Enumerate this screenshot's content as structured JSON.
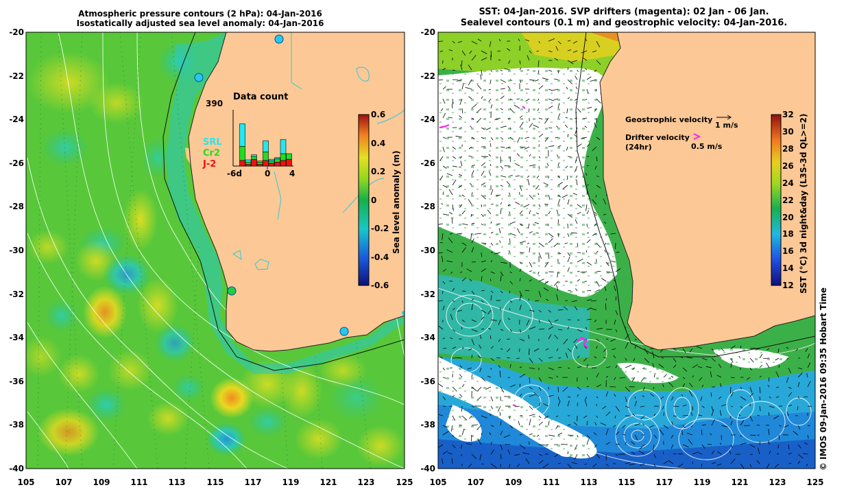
{
  "left_title_line1": "Atmospheric pressure contours (2 hPa): 04-Jan-2016",
  "left_title_line2": "Isostatically adjusted sea level anomaly: 04-Jan-2016",
  "right_title_line1": "SST: 04-Jan-2016. SVP drifters (magenta): 02 Jan - 06 Jan.",
  "right_title_line2": "Sealevel contours (0.1 m) and geostrophic velocity: 04-Jan-2016.",
  "lat_ticks": [
    "-20",
    "-22",
    "-24",
    "-26",
    "-28",
    "-30",
    "-32",
    "-34",
    "-36",
    "-38",
    "-40"
  ],
  "lon_ticks": [
    "105",
    "107",
    "109",
    "111",
    "113",
    "115",
    "117",
    "119",
    "121",
    "123",
    "125"
  ],
  "left_colorbar": {
    "label": "Sea level anomaly (m)",
    "ticks": [
      "0.6",
      "0.4",
      "0.2",
      "0",
      "-0.2",
      "-0.4",
      "-0.6"
    ],
    "range": [
      -0.6,
      0.6
    ]
  },
  "right_colorbar": {
    "label": "SST (°C) 3d night&day (L3S-3d QL>=2)",
    "ticks": [
      "32",
      "30",
      "28",
      "26",
      "24",
      "22",
      "20",
      "18",
      "16",
      "14",
      "12"
    ],
    "range": [
      12,
      32
    ]
  },
  "data_count": {
    "title": "Data count",
    "max_label": "390",
    "x_labels": [
      "-6d",
      "0",
      "4"
    ],
    "missions": [
      "SRL",
      "Cr2",
      "J-2"
    ],
    "mission_colors": [
      "#22e8f0",
      "#22dd22",
      "#ee1111"
    ]
  },
  "velocity_legend": {
    "geostrophic_label": "Geostrophic velocity",
    "geostrophic_scale": "1 m/s",
    "drifter_label": "Drifter velocity",
    "drifter_sub": "(24hr)",
    "drifter_scale": "0.5 m/s"
  },
  "credit": "© IMOS 09-Jan-2016 09:35 Hobart Time",
  "colors": {
    "land": "#fcc896",
    "coast_line": "#30c8d8",
    "drifter": "#ff22ee"
  }
}
